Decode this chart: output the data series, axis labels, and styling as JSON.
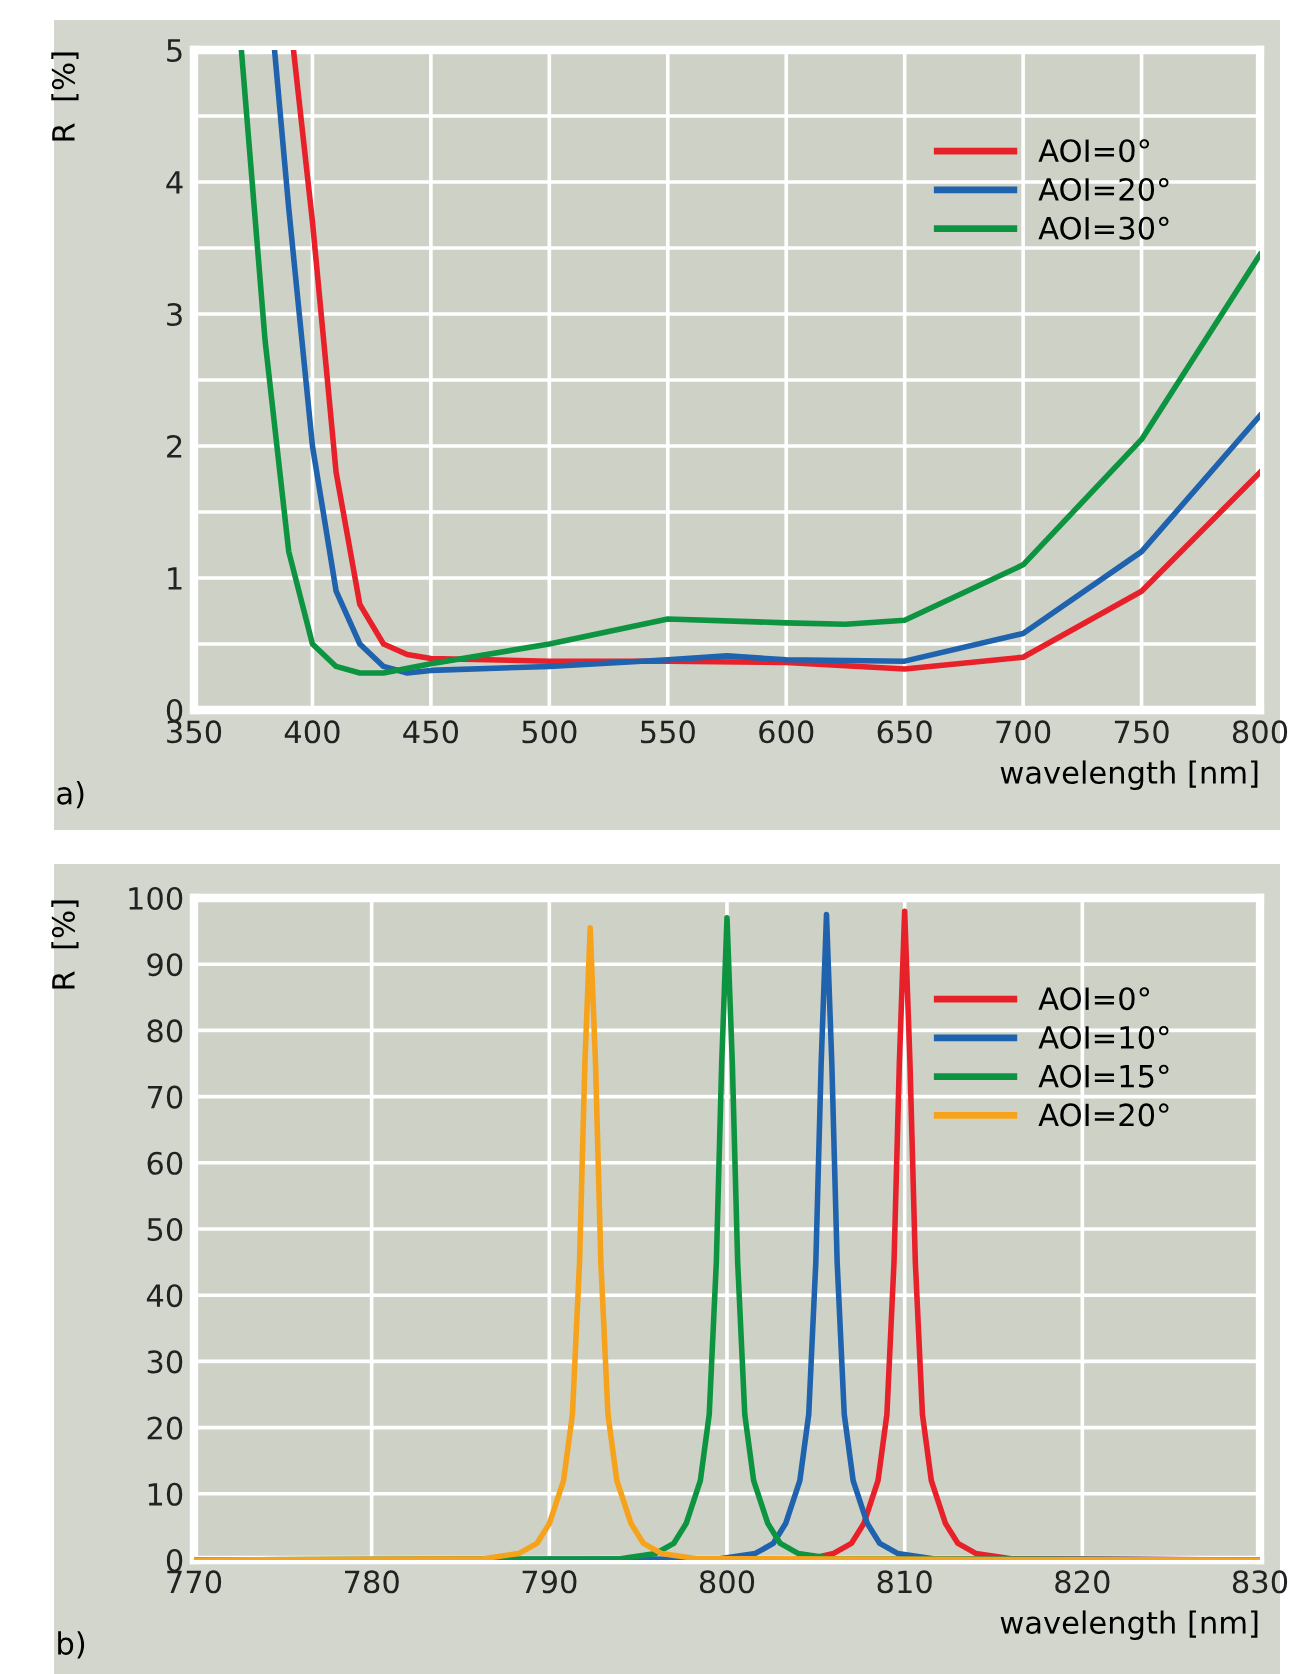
{
  "chart_data": [
    {
      "type": "line",
      "xlabel": "wavelength [nm]",
      "ylabel": "R  [%]",
      "annotations": [
        "a)"
      ],
      "xlim": [
        350,
        800
      ],
      "ylim": [
        0,
        5
      ],
      "xticks": [
        350,
        400,
        450,
        500,
        550,
        600,
        650,
        700,
        750,
        800
      ],
      "yticks": [
        0,
        {
          "value": 0.5,
          "label": null
        },
        1,
        {
          "value": 1.5,
          "label": null
        },
        2,
        {
          "value": 2.5,
          "label": null
        },
        3,
        {
          "value": 3.5,
          "label": null
        },
        4,
        {
          "value": 4.5,
          "label": null
        },
        5
      ],
      "grid": true,
      "legend": "top right",
      "series": [
        {
          "name": "AOI=0°",
          "color": "#e8202a",
          "x": [
            392,
            400,
            410,
            420,
            430,
            440,
            450,
            500,
            550,
            600,
            650,
            700,
            750,
            800
          ],
          "values": [
            5,
            3.7,
            1.8,
            0.8,
            0.5,
            0.42,
            0.39,
            0.37,
            0.37,
            0.36,
            0.31,
            0.4,
            0.9,
            1.8
          ]
        },
        {
          "name": "AOI=20°",
          "color": "#1f62ad",
          "x": [
            384,
            390,
            400,
            410,
            420,
            430,
            440,
            450,
            500,
            550,
            575,
            600,
            650,
            700,
            750,
            800
          ],
          "values": [
            5,
            3.8,
            2.0,
            0.9,
            0.5,
            0.33,
            0.28,
            0.3,
            0.33,
            0.38,
            0.41,
            0.38,
            0.37,
            0.58,
            1.2,
            2.23
          ]
        },
        {
          "name": "AOI=30°",
          "color": "#0d9440",
          "x": [
            370,
            380,
            390,
            400,
            410,
            420,
            430,
            450,
            500,
            550,
            600,
            625,
            650,
            700,
            750,
            800
          ],
          "values": [
            5,
            2.8,
            1.2,
            0.5,
            0.33,
            0.28,
            0.28,
            0.35,
            0.5,
            0.69,
            0.66,
            0.65,
            0.68,
            1.1,
            2.05,
            3.45
          ]
        }
      ]
    },
    {
      "type": "line",
      "xlabel": "wavelength [nm]",
      "ylabel": "R  [%]",
      "annotations": [
        "b)"
      ],
      "xlim": [
        770,
        830
      ],
      "ylim": [
        0,
        100
      ],
      "xticks": [
        770,
        780,
        790,
        800,
        810,
        820,
        830
      ],
      "yticks": [
        0,
        10,
        20,
        30,
        40,
        50,
        60,
        70,
        80,
        90,
        100
      ],
      "grid": true,
      "legend": "top right",
      "series": [
        {
          "name": "AOI=0°",
          "color": "#e8202a",
          "x": [
            770,
            803.5,
            805.2,
            806,
            807,
            807.7,
            808.5,
            809,
            809.4,
            809.7,
            810,
            810.3,
            810.6,
            811,
            811.5,
            812.3,
            813,
            814,
            816,
            830
          ],
          "values": [
            0,
            0,
            0.5,
            1,
            2.5,
            5.5,
            12,
            22,
            45,
            75,
            98,
            75,
            45,
            22,
            12,
            5.5,
            2.5,
            1,
            0.2,
            0
          ]
        },
        {
          "name": "AOI=10°",
          "color": "#1f62ad",
          "x": [
            770,
            799.6,
            801.6,
            802.6,
            803.3,
            804.1,
            804.6,
            805,
            805.3,
            805.6,
            805.9,
            806.2,
            806.6,
            807.1,
            807.9,
            808.6,
            809.6,
            811.6,
            830
          ],
          "values": [
            0,
            0.2,
            1,
            2.5,
            5.5,
            12,
            22,
            45,
            75,
            97.5,
            75,
            45,
            22,
            12,
            5.5,
            2.5,
            1,
            0.2,
            0
          ]
        },
        {
          "name": "AOI=15°",
          "color": "#0d9440",
          "x": [
            770,
            794,
            796,
            797,
            797.7,
            798.5,
            799,
            799.4,
            799.7,
            800,
            800.3,
            800.6,
            801,
            801.5,
            802.3,
            803,
            804,
            806,
            830
          ],
          "values": [
            0,
            0.2,
            1,
            2.5,
            5.5,
            12,
            22,
            45,
            75,
            97,
            75,
            45,
            22,
            12,
            5.5,
            2.5,
            1,
            0.2,
            0
          ]
        },
        {
          "name": "AOI=20°",
          "color": "#f7a21b",
          "x": [
            770,
            786.3,
            788.3,
            789.3,
            790,
            790.8,
            791.3,
            791.7,
            792,
            792.3,
            792.6,
            792.9,
            793.3,
            793.8,
            794.6,
            795.3,
            796.3,
            798.3,
            830
          ],
          "values": [
            0,
            0.2,
            1,
            2.5,
            5.5,
            12,
            22,
            45,
            75,
            95.5,
            75,
            45,
            22,
            12,
            5.5,
            2.5,
            1,
            0.2,
            0
          ]
        }
      ]
    }
  ]
}
